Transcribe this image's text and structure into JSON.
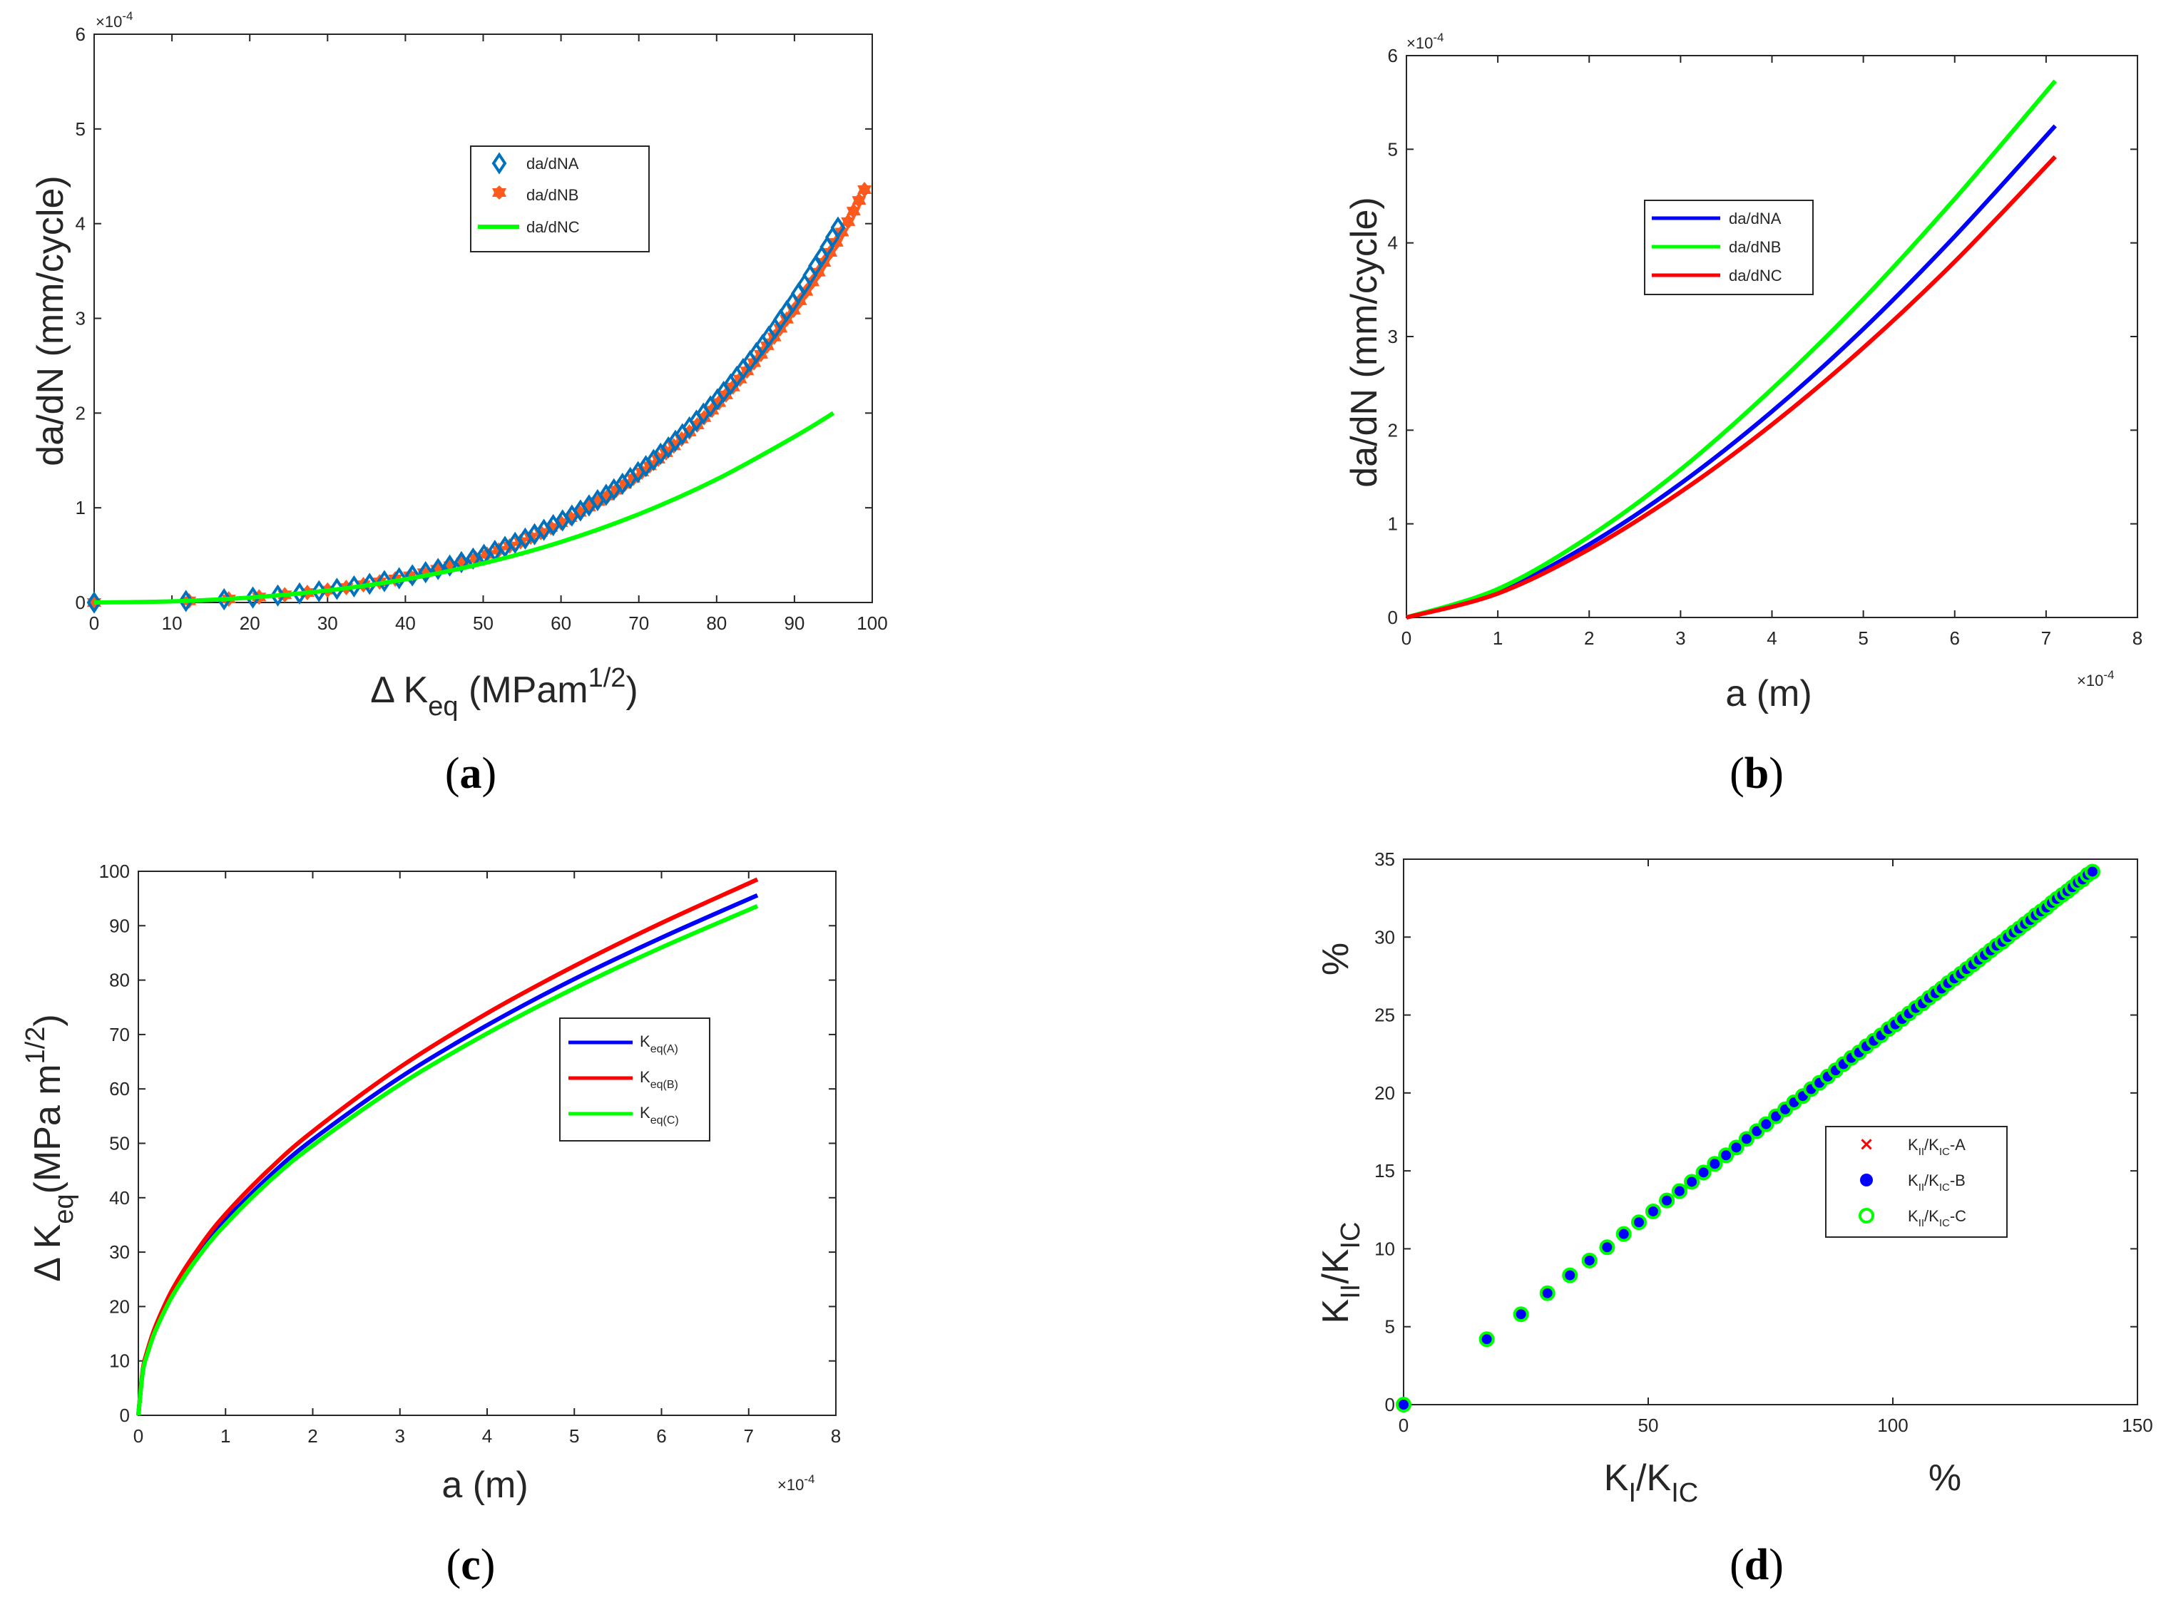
{
  "colors": {
    "blue": "#0000ff",
    "red": "#ff0000",
    "green": "#00ff00",
    "steel": "#0072bd",
    "orange": "#ff5a1e",
    "axis": "#262626"
  },
  "chart_data": [
    {
      "id": "a",
      "type": "scatter",
      "caption": {
        "open": "(",
        "letter": "a",
        "close": ")"
      },
      "xlabel": {
        "prefix": "Δ K",
        "sub": "eq",
        "unit": " (MPam",
        "sup": "1/2",
        "close": ")"
      },
      "ylabel": "da/dN (mm/cycle)",
      "xlim": [
        0,
        100
      ],
      "ylim": [
        0,
        6
      ],
      "xticks": [
        0,
        10,
        20,
        30,
        40,
        50,
        60,
        70,
        80,
        90,
        100
      ],
      "yticks": [
        0,
        1,
        2,
        3,
        4,
        5,
        6
      ],
      "y_exponent": "×10",
      "y_exponent_power": "-4",
      "legend_position": "upper-middle",
      "series": [
        {
          "name": "da/dNA",
          "marker": "diamond",
          "color": "#0072bd",
          "x": [
            0,
            11.8,
            16.7,
            20.4,
            23.6,
            26.4,
            28.9,
            31.2,
            33.4,
            35.4,
            37.3,
            39.2,
            40.9,
            42.6,
            44.2,
            45.7,
            47.2,
            48.7,
            50.1,
            51.5,
            52.8,
            54.1,
            55.4,
            56.6,
            57.8,
            59.0,
            60.2,
            61.4,
            62.5,
            63.6,
            64.7,
            65.8,
            66.8,
            67.9,
            68.9,
            69.9,
            70.9,
            71.9,
            72.8,
            73.8,
            74.7,
            75.6,
            76.5,
            77.4,
            78.3,
            79.2,
            80.1,
            80.9,
            81.8,
            82.6,
            83.4,
            84.3,
            85.1,
            85.9,
            86.7,
            87.5,
            88.2,
            89.0,
            89.8,
            90.5,
            91.3,
            92.0,
            92.7,
            93.5,
            94.2,
            94.9,
            95.6
          ],
          "y": [
            0,
            0.016,
            0.034,
            0.053,
            0.074,
            0.096,
            0.119,
            0.144,
            0.17,
            0.197,
            0.226,
            0.256,
            0.287,
            0.32,
            0.354,
            0.39,
            0.426,
            0.464,
            0.504,
            0.545,
            0.587,
            0.63,
            0.675,
            0.721,
            0.768,
            0.817,
            0.867,
            0.918,
            0.971,
            1.025,
            1.08,
            1.137,
            1.195,
            1.254,
            1.315,
            1.377,
            1.44,
            1.505,
            1.571,
            1.638,
            1.707,
            1.777,
            1.848,
            1.92,
            1.994,
            2.07,
            2.146,
            2.224,
            2.303,
            2.384,
            2.466,
            2.549,
            2.634,
            2.72,
            2.807,
            2.895,
            2.985,
            3.077,
            3.169,
            3.263,
            3.359,
            3.455,
            3.553,
            3.653,
            3.754,
            3.856,
            3.959
          ]
        },
        {
          "name": "da/dNB",
          "marker": "hexagram",
          "color": "#ff5a1e",
          "x": [
            0,
            12.2,
            17.3,
            21.2,
            24.5,
            27.4,
            30.0,
            32.4,
            34.6,
            36.7,
            38.7,
            40.6,
            42.4,
            44.1,
            45.8,
            47.4,
            49.0,
            50.5,
            52.0,
            53.4,
            54.8,
            56.1,
            57.4,
            58.7,
            60.0,
            61.2,
            62.4,
            63.6,
            64.8,
            66.0,
            67.1,
            68.2,
            69.3,
            70.4,
            71.4,
            72.5,
            73.5,
            74.5,
            75.5,
            76.5,
            77.5,
            78.4,
            79.4,
            80.3,
            81.2,
            82.1,
            83.0,
            83.9,
            84.8,
            85.7,
            86.5,
            87.4,
            88.2,
            89.0,
            89.9,
            90.7,
            91.5,
            92.3,
            93.1,
            93.8,
            94.6,
            95.4,
            96.1,
            96.9,
            97.6,
            98.3,
            99.0
          ],
          "y": [
            0,
            0.017,
            0.037,
            0.058,
            0.081,
            0.105,
            0.131,
            0.158,
            0.187,
            0.217,
            0.248,
            0.281,
            0.315,
            0.351,
            0.388,
            0.427,
            0.467,
            0.509,
            0.552,
            0.597,
            0.643,
            0.691,
            0.74,
            0.791,
            0.843,
            0.896,
            0.951,
            1.008,
            1.066,
            1.125,
            1.186,
            1.249,
            1.312,
            1.378,
            1.444,
            1.513,
            1.582,
            1.653,
            1.726,
            1.8,
            1.875,
            1.952,
            2.031,
            2.111,
            2.192,
            2.275,
            2.359,
            2.445,
            2.532,
            2.621,
            2.711,
            2.803,
            2.896,
            2.991,
            3.087,
            3.185,
            3.284,
            3.385,
            3.487,
            3.591,
            3.696,
            3.803,
            3.911,
            4.021,
            4.132,
            4.245,
            4.359
          ]
        },
        {
          "name": "da/dNC",
          "marker": "line",
          "color": "#00ff00",
          "x": [
            0,
            10,
            20,
            30,
            40,
            50,
            60,
            70,
            80,
            90,
            95
          ],
          "y": [
            0,
            0.012,
            0.052,
            0.127,
            0.245,
            0.413,
            0.64,
            0.933,
            1.3,
            1.75,
            2.0
          ]
        }
      ]
    },
    {
      "id": "b",
      "type": "line",
      "caption": {
        "open": "(",
        "letter": "b",
        "close": ")"
      },
      "xlabel": {
        "text": "a (m)"
      },
      "ylabel": "da/dN (mm/cycle)",
      "xlim": [
        0,
        8
      ],
      "ylim": [
        0,
        6
      ],
      "xticks": [
        0,
        1,
        2,
        3,
        4,
        5,
        6,
        7,
        8
      ],
      "yticks": [
        0,
        1,
        2,
        3,
        4,
        5,
        6
      ],
      "x_exponent": "×10",
      "x_exponent_power": "-4",
      "y_exponent": "×10",
      "y_exponent_power": "-4",
      "legend_position": "upper-left",
      "series": [
        {
          "name": "da/dNA",
          "color": "#0000ff",
          "x": [
            0,
            1,
            2,
            3,
            4,
            5,
            6,
            7.1
          ],
          "y": [
            0,
            0.275,
            0.781,
            1.43,
            2.2,
            3.08,
            4.07,
            5.25
          ]
        },
        {
          "name": "da/dNB",
          "color": "#00ff00",
          "x": [
            0,
            1,
            2,
            3,
            4,
            5,
            6,
            7.1
          ],
          "y": [
            0,
            0.304,
            0.864,
            1.58,
            2.44,
            3.4,
            4.47,
            5.73
          ]
        },
        {
          "name": "da/dNC",
          "color": "#ff0000",
          "x": [
            0,
            1,
            2,
            3,
            4,
            5,
            6,
            7.1
          ],
          "y": [
            0,
            0.256,
            0.729,
            1.34,
            2.06,
            2.88,
            3.8,
            4.92
          ]
        }
      ]
    },
    {
      "id": "c",
      "type": "line",
      "caption": {
        "open": "(",
        "letter": "c",
        "close": ")"
      },
      "xlabel": {
        "text": "a (m)"
      },
      "ylabel": {
        "prefix": "Δ K",
        "sub": "eq",
        "unit": "(MPa m",
        "sup": "1/2",
        "close": ")"
      },
      "xlim": [
        0,
        8
      ],
      "ylim": [
        0,
        100
      ],
      "xticks": [
        0,
        1,
        2,
        3,
        4,
        5,
        6,
        7,
        8
      ],
      "yticks": [
        0,
        10,
        20,
        30,
        40,
        50,
        60,
        70,
        80,
        90,
        100
      ],
      "x_exponent": "×10",
      "x_exponent_power": "-4",
      "legend_position": "middle-right",
      "series": [
        {
          "name": "K",
          "sub": "eq(A)",
          "color": "#0000ff",
          "x": [
            0,
            0.05,
            0.1,
            0.2,
            0.4,
            0.7,
            1,
            1.5,
            2,
            3,
            4,
            5,
            6,
            7.1
          ],
          "y": [
            0,
            8.0,
            11.3,
            16.0,
            22.7,
            30.0,
            35.9,
            43.9,
            50.7,
            62.1,
            71.7,
            80.2,
            87.8,
            95.6
          ]
        },
        {
          "name": "K",
          "sub": "eq(B)",
          "color": "#ff0000",
          "x": [
            0,
            0.05,
            0.1,
            0.2,
            0.4,
            0.7,
            1,
            1.5,
            2,
            3,
            4,
            5,
            6,
            7.1
          ],
          "y": [
            0,
            8.3,
            11.7,
            16.5,
            23.4,
            30.9,
            37.0,
            45.2,
            52.2,
            64.0,
            73.9,
            82.6,
            90.5,
            98.5
          ]
        },
        {
          "name": "K",
          "sub": "eq(C)",
          "color": "#00ff00",
          "x": [
            0,
            0.05,
            0.1,
            0.2,
            0.4,
            0.7,
            1,
            1.5,
            2,
            3,
            4,
            5,
            6,
            7.1
          ],
          "y": [
            0,
            7.9,
            11.1,
            15.7,
            22.2,
            29.4,
            35.1,
            43.0,
            49.6,
            60.8,
            70.2,
            78.5,
            86.0,
            93.6
          ]
        }
      ]
    },
    {
      "id": "d",
      "type": "scatter",
      "caption": {
        "open": "(",
        "letter": "d",
        "close": ")"
      },
      "xlabel": {
        "main": "K",
        "sub": "I",
        "slash": "/K",
        "sub2": "IC",
        "pct": "%"
      },
      "ylabel": {
        "main": "K",
        "sub": "II",
        "slash": "/K",
        "sub2": "IC",
        "pct": "%"
      },
      "xlim": [
        0,
        150
      ],
      "ylim": [
        0,
        35
      ],
      "xticks": [
        0,
        50,
        100,
        150
      ],
      "yticks": [
        0,
        5,
        10,
        15,
        20,
        25,
        30,
        35
      ],
      "legend_position": "middle-right",
      "series": [
        {
          "name": "K",
          "sub": "II",
          "slash": "/K",
          "sub2": "IC",
          "suffix": "-A",
          "marker": "x",
          "color": "#ff0000"
        },
        {
          "name": "K",
          "sub": "II",
          "slash": "/K",
          "sub2": "IC",
          "suffix": "-B",
          "marker": "filled-circle",
          "color": "#0000ff"
        },
        {
          "name": "K",
          "sub": "II",
          "slash": "/K",
          "sub2": "IC",
          "suffix": "-C",
          "marker": "open-circle",
          "color": "#00ff00"
        }
      ],
      "x": [
        0,
        17.0,
        24.0,
        29.4,
        34.0,
        38.0,
        41.6,
        45.0,
        48.1,
        51.0,
        53.8,
        56.4,
        58.9,
        61.3,
        63.6,
        65.9,
        68.0,
        70.1,
        72.2,
        74.1,
        76.1,
        78.0,
        79.8,
        81.6,
        83.3,
        85.0,
        86.7,
        88.3,
        89.9,
        91.5,
        93.1,
        94.6,
        96.1,
        97.6,
        99.1,
        100.5,
        101.9,
        103.3,
        104.7,
        106.1,
        107.4,
        108.7,
        110.0,
        111.3,
        112.6,
        113.9,
        115.1,
        116.4,
        117.6,
        118.8,
        120.0,
        121.2,
        122.4,
        123.5,
        124.7,
        125.8,
        127.0,
        128.1,
        129.2,
        130.3,
        131.4,
        132.5,
        133.5,
        134.6,
        135.7,
        136.7,
        137.8,
        138.8,
        139.8,
        140.8
      ],
      "y": [
        0,
        4.2,
        5.8,
        7.15,
        8.3,
        9.25,
        10.1,
        10.95,
        11.7,
        12.4,
        13.1,
        13.7,
        14.3,
        14.9,
        15.45,
        16.0,
        16.5,
        17.05,
        17.55,
        18.0,
        18.5,
        18.95,
        19.4,
        19.8,
        20.25,
        20.65,
        21.05,
        21.45,
        21.85,
        22.25,
        22.6,
        23.0,
        23.35,
        23.7,
        24.1,
        24.4,
        24.75,
        25.1,
        25.45,
        25.75,
        26.1,
        26.4,
        26.7,
        27.05,
        27.35,
        27.65,
        27.95,
        28.25,
        28.55,
        28.85,
        29.15,
        29.45,
        29.7,
        30.0,
        30.3,
        30.55,
        30.85,
        31.1,
        31.4,
        31.65,
        31.9,
        32.2,
        32.45,
        32.7,
        32.95,
        33.2,
        33.5,
        33.7,
        34.0,
        34.2
      ]
    }
  ]
}
